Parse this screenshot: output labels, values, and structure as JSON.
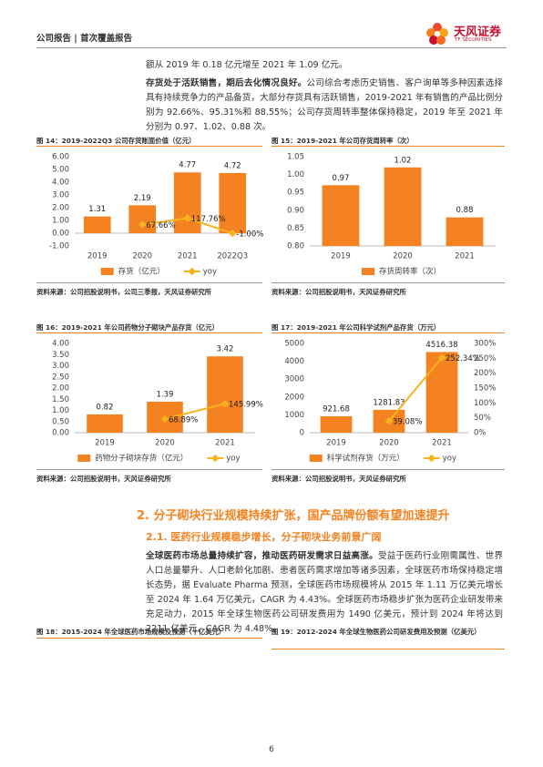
{
  "header": {
    "left": "公司报告 | 首次覆盖报告",
    "brand": "天风证券",
    "brand_en": "TF SECURITIES"
  },
  "paragraphs": [
    {
      "text": "额从 2019 年 0.18 亿元增至 2021 年 1.09 亿元。"
    },
    {
      "lead": "存货处于活跃销售，期后去化情况良好。",
      "text": "公司综合考虑历史销售、客户询单等多种因素选择具有持续竞争力的产品备货，大部分存货具有活跃销售，2019-2021 年有销售的产品比例分别为 92.66%、95.31%和 88.55%；公司存货周转率整体保持稳定，2019 年至 2021 年分别为 0.97、1.02、0.88 次。"
    }
  ],
  "section": {
    "heading": "2. 分子砌块行业规模持续扩张，国产品牌份额有望加速提升",
    "subheading": "2.1. 医药行业规模稳步增长，分子砌块业务前景广阔",
    "paragraph": {
      "lead": "全球医药市场总量持续扩容，推动医药研发需求日益高涨。",
      "text": "受益于医药行业刚需属性、世界人口总量攀升、人口老龄化加剧、患者医药需求增加等诸多因素，全球医药市场保持稳定增长态势，据 Evaluate Pharma 预测，全球医药市场规模将从 2015 年 1.11 万亿美元增长至 2024 年 1.64 万亿美元，CAGR 为 4.43%。全球医药市场稳步扩张为医药企业研发带来充足动力，2015 年全球生物医药公司研发费用为 1490 亿美元，预计到 2024 年将达到 2211 亿美元，CAGR 为 4.48%。"
    }
  },
  "figures": [
    "图 18：2015-2024 年全球医药市场规模及预测（十亿美元）",
    "图 19：2012-2024 年全球生物医药公司研发费用及预测（亿美元）"
  ],
  "page_number": 6,
  "chart_data": [
    {
      "type": "bar",
      "title": "图 14：2019-2022Q3 公司存货账面价值（亿元）",
      "source": "资料来源：公司招股说明书，公司三季报，天风证券研究所",
      "categories": [
        "2019",
        "2020",
        "2021",
        "2022Q3"
      ],
      "series": [
        {
          "name": "存货（亿元）",
          "color": "#f58220",
          "type": "bar",
          "values": [
            1.31,
            2.19,
            4.77,
            4.72
          ]
        },
        {
          "name": "yoy",
          "color": "#f5b41e",
          "type": "line",
          "axis": "y2",
          "values": [
            null,
            67.66,
            117.76,
            -1.0
          ],
          "value_labels": [
            null,
            "67.66%",
            "117.76%",
            "-1.00%"
          ]
        }
      ],
      "ylim": [
        -1,
        6
      ],
      "yticks": [
        {
          "value": -1,
          "label": "-1.00"
        },
        {
          "value": 0,
          "label": "0.00"
        },
        {
          "value": 1,
          "label": "1.00"
        },
        {
          "value": 2,
          "label": "2.00"
        },
        {
          "value": 3,
          "label": "3.00"
        },
        {
          "value": 4,
          "label": "4.00"
        },
        {
          "value": 5,
          "label": "5.00"
        },
        {
          "value": 6,
          "label": "6.00"
        }
      ],
      "y2lim": [
        -100,
        600
      ],
      "grid": false,
      "legend": "bottom"
    },
    {
      "type": "bar",
      "title": "图 15：2019-2021 年公司存货周转率（次）",
      "source": "资料来源：公司招股说明书，天风证券研究所",
      "categories": [
        "2019",
        "2020",
        "2021"
      ],
      "series": [
        {
          "name": "存货周转率（次）",
          "color": "#f58220",
          "type": "bar",
          "values": [
            0.97,
            1.02,
            0.88
          ]
        }
      ],
      "ylim": [
        0.8,
        1.05
      ],
      "yticks": [
        {
          "value": 0.8,
          "label": "0.80"
        },
        {
          "value": 0.85,
          "label": "0.85"
        },
        {
          "value": 0.9,
          "label": "0.90"
        },
        {
          "value": 0.95,
          "label": "0.95"
        },
        {
          "value": 1,
          "label": "1.00"
        },
        {
          "value": 1.05,
          "label": "1.05"
        }
      ],
      "grid": false,
      "legend": "bottom"
    },
    {
      "type": "bar",
      "title": "图 16：2019-2021 年公司药物分子砌块产品存货（亿元）",
      "source": "资料来源：公司招股说明书，天风证券研究所",
      "categories": [
        "2019",
        "2020",
        "2021"
      ],
      "series": [
        {
          "name": "药物分子砌块存货（亿元）",
          "color": "#f58220",
          "type": "bar",
          "values": [
            0.82,
            1.39,
            3.42
          ]
        },
        {
          "name": "yoy",
          "color": "#f5b41e",
          "type": "line",
          "axis": "y2",
          "values": [
            null,
            68.89,
            145.99
          ],
          "value_labels": [
            null,
            "68.89%",
            "145.99%"
          ]
        }
      ],
      "ylim": [
        0,
        4
      ],
      "yticks": [
        {
          "value": 0,
          "label": "0.00"
        },
        {
          "value": 0.5,
          "label": "0.50"
        },
        {
          "value": 1,
          "label": "1.00"
        },
        {
          "value": 1.5,
          "label": "1.50"
        },
        {
          "value": 2,
          "label": "2.00"
        },
        {
          "value": 2.5,
          "label": "2.50"
        },
        {
          "value": 3,
          "label": "3.00"
        },
        {
          "value": 3.5,
          "label": "3.50"
        },
        {
          "value": 4,
          "label": "4.00"
        }
      ],
      "y2lim": [
        0,
        450
      ],
      "grid": false,
      "legend": "bottom"
    },
    {
      "type": "bar",
      "title": "图 17：2019-2021 年公司科学试剂产品存货（万元）",
      "source": "资料来源：公司招股说明书，天风证券研究所",
      "categories": [
        "2019",
        "2020",
        "2021"
      ],
      "series": [
        {
          "name": "科学试剂存货（万元）",
          "color": "#f58220",
          "type": "bar",
          "values": [
            921.68,
            1281.83,
            4516.38
          ]
        },
        {
          "name": "yoy",
          "color": "#f5b41e",
          "type": "line",
          "axis": "y2",
          "values": [
            null,
            39.08,
            252.34
          ],
          "value_labels": [
            null,
            "39.08%",
            "252.34%"
          ]
        }
      ],
      "ylim": [
        0,
        5000
      ],
      "yticks": [
        0,
        1000,
        2000,
        3000,
        4000,
        5000
      ],
      "y2lim": [
        0,
        300
      ],
      "y2ticks": [
        {
          "value": 0,
          "label": "0%"
        },
        {
          "value": 50,
          "label": "50%"
        },
        {
          "value": 100,
          "label": "100%"
        },
        {
          "value": 150,
          "label": "150%"
        },
        {
          "value": 200,
          "label": "200%"
        },
        {
          "value": 250,
          "label": "250%"
        },
        {
          "value": 300,
          "label": "300%"
        }
      ],
      "grid": false,
      "legend": "bottom"
    }
  ]
}
